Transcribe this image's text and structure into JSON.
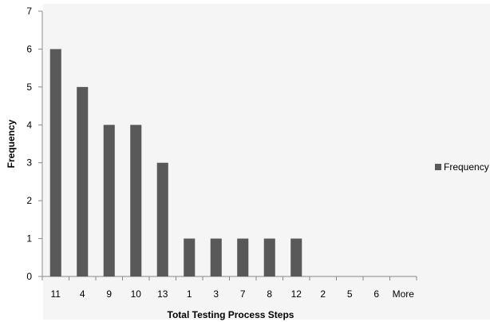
{
  "chart_data": {
    "type": "bar",
    "title": "",
    "xlabel": "Total Testing Process Steps",
    "ylabel": "Frequency",
    "categories": [
      "11",
      "4",
      "9",
      "10",
      "13",
      "1",
      "3",
      "7",
      "8",
      "12",
      "2",
      "5",
      "6",
      "More"
    ],
    "series": [
      {
        "name": "Frequency",
        "color": "#595959",
        "values": [
          6,
          5,
          4,
          4,
          3,
          1,
          1,
          1,
          1,
          1,
          0,
          0,
          0,
          0
        ]
      }
    ],
    "ylim": [
      0,
      7
    ],
    "yticks": [
      "0",
      "1",
      "2",
      "3",
      "4",
      "5",
      "6",
      "7"
    ],
    "grid": false,
    "legend_position": "right"
  }
}
